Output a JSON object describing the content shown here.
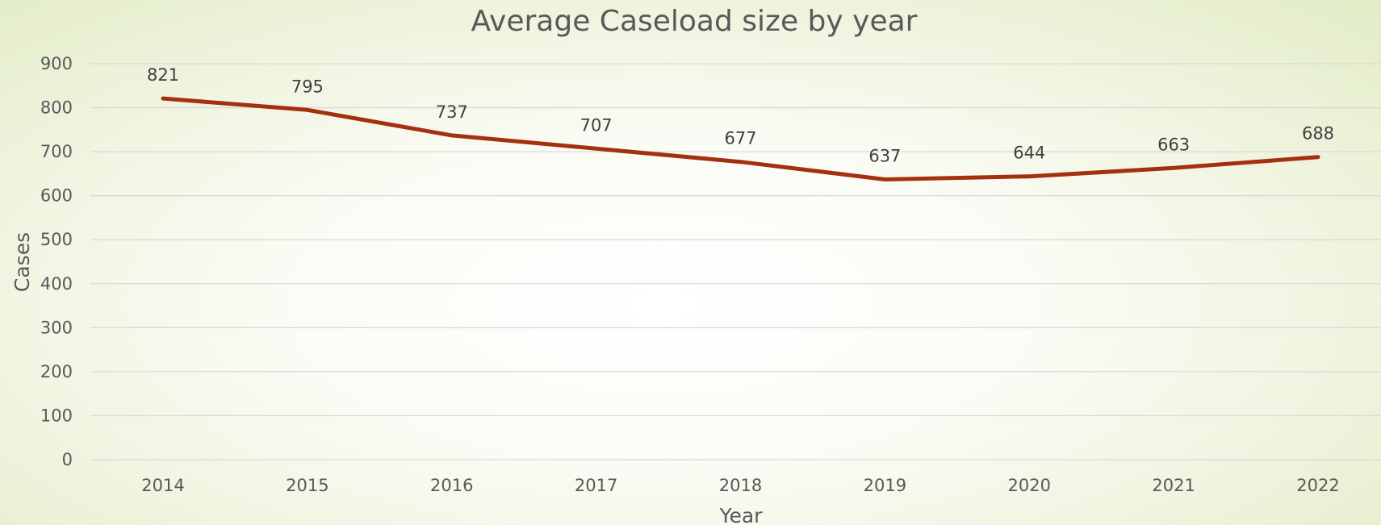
{
  "chart_data": {
    "type": "line",
    "title": "Average Caseload size by year",
    "xlabel": "Year",
    "ylabel": "Cases",
    "categories": [
      "2014",
      "2015",
      "2016",
      "2017",
      "2018",
      "2019",
      "2020",
      "2021",
      "2022"
    ],
    "series": [
      {
        "values": [
          821,
          795,
          737,
          707,
          677,
          637,
          644,
          663,
          688
        ],
        "color": "#a5300f"
      }
    ],
    "ylim": [
      0,
      900
    ],
    "yticks": [
      0,
      100,
      200,
      300,
      400,
      500,
      600,
      700,
      800,
      900
    ],
    "grid": true,
    "legend": "none",
    "data_labels": true
  }
}
